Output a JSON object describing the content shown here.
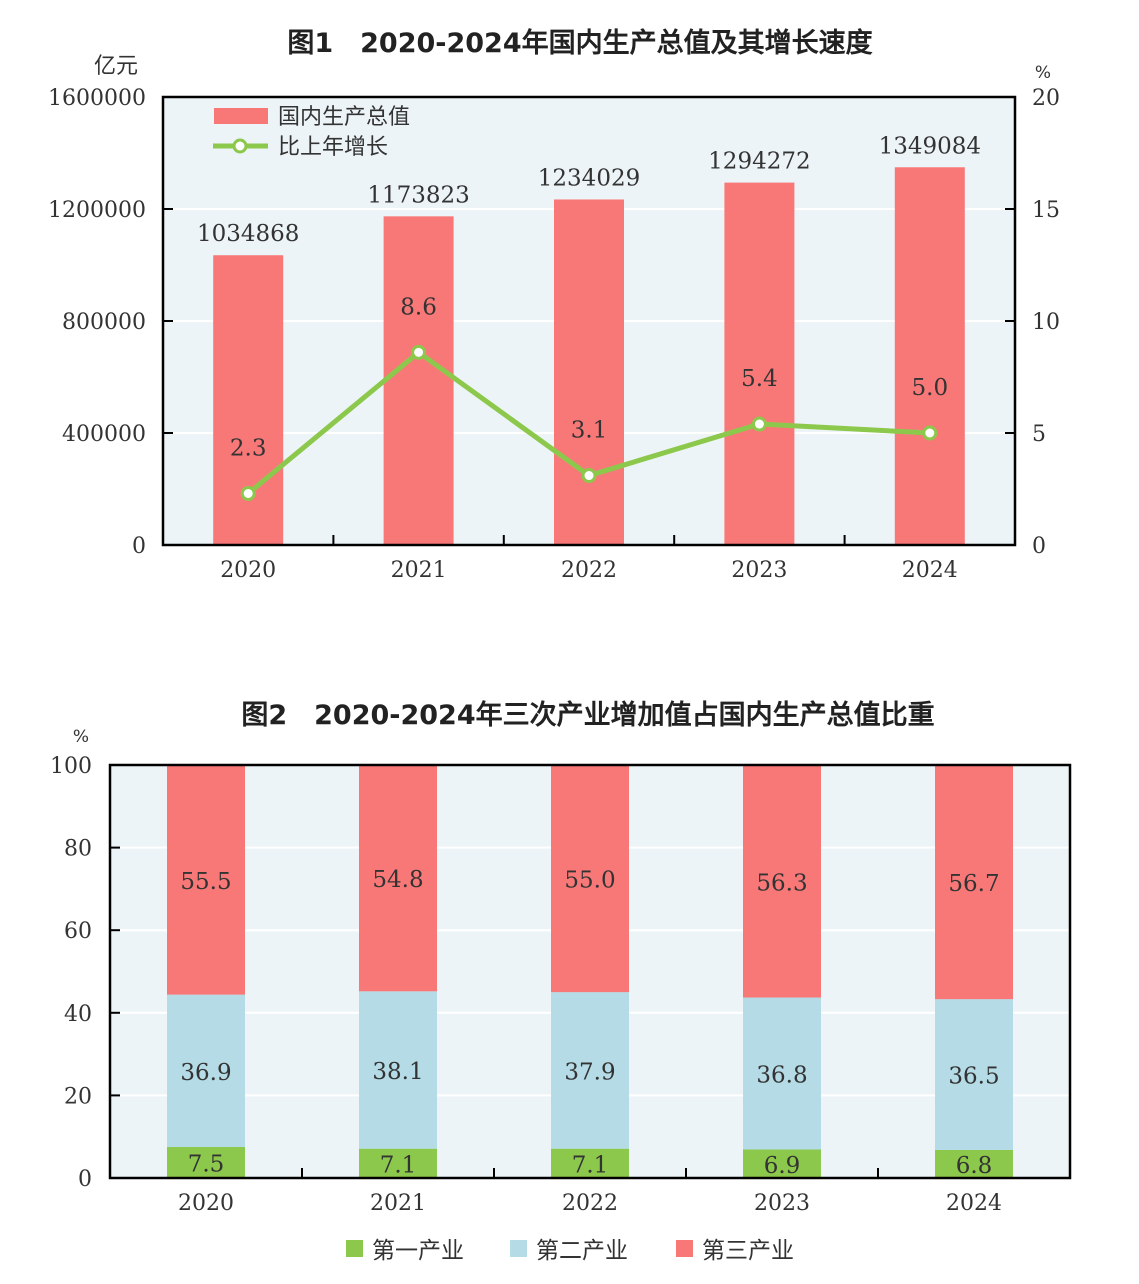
{
  "chart_data": [
    {
      "type": "bar+line",
      "title": "图1　2020-2024年国内生产总值及其增长速度",
      "categories": [
        "2020",
        "2021",
        "2022",
        "2023",
        "2024"
      ],
      "ylabel_left": "亿元",
      "ylabel_right": "%",
      "ylim_left": [
        0,
        1600000
      ],
      "ylim_right": [
        0,
        20
      ],
      "yticks_left": [
        "0",
        "400000",
        "800000",
        "1200000",
        "1600000"
      ],
      "yticks_right": [
        "0",
        "5",
        "10",
        "15",
        "20"
      ],
      "series": [
        {
          "name": "国内生产总值",
          "type": "bar",
          "axis": "left",
          "color": "#f87878",
          "values": [
            1034868,
            1173823,
            1234029,
            1294272,
            1349084
          ],
          "labels": [
            "1034868",
            "1173823",
            "1234029",
            "1294272",
            "1349084"
          ]
        },
        {
          "name": "比上年增长",
          "type": "line",
          "axis": "right",
          "color": "#8cc84b",
          "values": [
            2.3,
            8.6,
            3.1,
            5.4,
            5.0
          ],
          "labels": [
            "2.3",
            "8.6",
            "3.1",
            "5.4",
            "5.0"
          ]
        }
      ],
      "legend": "top-left",
      "grid": true
    },
    {
      "type": "stacked-bar",
      "title": "图2　2020-2024年三次产业增加值占国内生产总值比重",
      "categories": [
        "2020",
        "2021",
        "2022",
        "2023",
        "2024"
      ],
      "ylabel": "%",
      "ylim": [
        0,
        100
      ],
      "yticks": [
        "0",
        "20",
        "40",
        "60",
        "80",
        "100"
      ],
      "series": [
        {
          "name": "第一产业",
          "color": "#8cc84b",
          "values": [
            7.5,
            7.1,
            7.1,
            6.9,
            6.8
          ],
          "labels": [
            "7.5",
            "7.1",
            "7.1",
            "6.9",
            "6.8"
          ]
        },
        {
          "name": "第二产业",
          "color": "#b4dbe6",
          "values": [
            36.9,
            38.1,
            37.9,
            36.8,
            36.5
          ],
          "labels": [
            "36.9",
            "38.1",
            "37.9",
            "36.8",
            "36.5"
          ]
        },
        {
          "name": "第三产业",
          "color": "#f87878",
          "values": [
            55.5,
            54.8,
            55.0,
            56.3,
            56.7
          ],
          "labels": [
            "55.5",
            "54.8",
            "55.0",
            "56.3",
            "56.7"
          ]
        }
      ],
      "legend": "bottom",
      "grid": true
    }
  ]
}
